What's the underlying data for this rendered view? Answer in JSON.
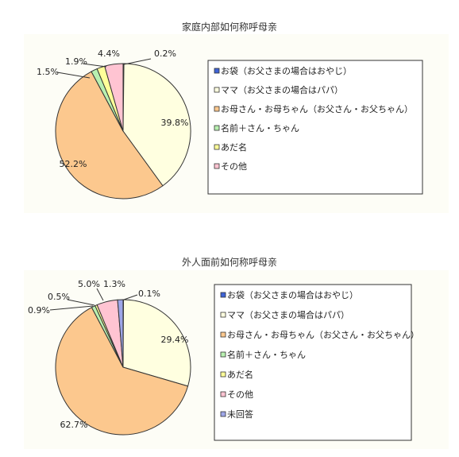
{
  "colors": {
    "ofukuro": "#3f63d6",
    "mama": "#ffffe0",
    "okaasan": "#fcc88e",
    "namae": "#b8f0b0",
    "adana": "#ffff99",
    "sonota": "#ffc4d2",
    "mikaitou": "#9ea6e8"
  },
  "chart_data": [
    {
      "type": "pie",
      "title": "家庭内部如何称呼母亲",
      "legend_placement": "right",
      "slices": [
        {
          "label": "お袋（お父さまの場合はおやじ）",
          "value": 0.2,
          "value_label": "0.2%",
          "color_key": "ofukuro"
        },
        {
          "label": "ママ（お父さまの場合はパパ）",
          "value": 39.8,
          "value_label": "39.8%",
          "color_key": "mama"
        },
        {
          "label": "お母さん・お母ちゃん（お父さん・お父ちゃん）",
          "value": 52.2,
          "value_label": "52.2%",
          "color_key": "okaasan"
        },
        {
          "label": "名前＋さん・ちゃん",
          "value": 1.5,
          "value_label": "1.5%",
          "color_key": "namae"
        },
        {
          "label": "あだ名",
          "value": 1.9,
          "value_label": "1.9%",
          "color_key": "adana"
        },
        {
          "label": "その他",
          "value": 4.4,
          "value_label": "4.4%",
          "color_key": "sonota"
        }
      ]
    },
    {
      "type": "pie",
      "title": "外人面前如何称呼母亲",
      "legend_placement": "right",
      "slices": [
        {
          "label": "お袋（お父さまの場合はおやじ）",
          "value": 0.1,
          "value_label": "0.1%",
          "color_key": "ofukuro"
        },
        {
          "label": "ママ（お父さまの場合はパパ）",
          "value": 29.4,
          "value_label": "29.4%",
          "color_key": "mama"
        },
        {
          "label": "お母さん・お母ちゃん（お父さん・お父ちゃん）",
          "value": 62.7,
          "value_label": "62.7%",
          "color_key": "okaasan"
        },
        {
          "label": "名前＋さん・ちゃん",
          "value": 0.9,
          "value_label": "0.9%",
          "color_key": "namae"
        },
        {
          "label": "あだ名",
          "value": 0.5,
          "value_label": "0.5%",
          "color_key": "adana"
        },
        {
          "label": "その他",
          "value": 5.0,
          "value_label": "5.0%",
          "color_key": "sonota"
        },
        {
          "label": "未回答",
          "value": 1.3,
          "value_label": "1.3%",
          "color_key": "mikaitou"
        }
      ]
    }
  ]
}
